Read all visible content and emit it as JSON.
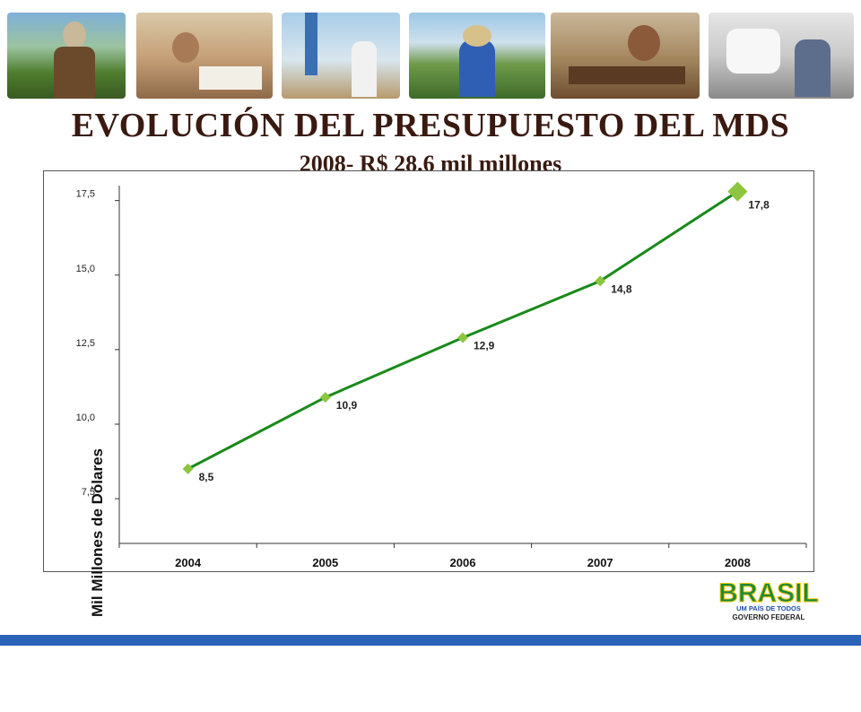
{
  "title": "EVOLUCIÓN DEL PRESUPUESTO DEL MDS",
  "subtitle": "2008- R$ 28,6 mil millones",
  "logo": {
    "word": "BRASIL",
    "tagline": "UM PAÍS DE TODOS",
    "subtext": "GOVERNO FEDERAL"
  },
  "chart_data": {
    "type": "line",
    "title": "",
    "xlabel": "",
    "ylabel": "Mil Millones de Dólares",
    "categories": [
      "2004",
      "2005",
      "2006",
      "2007",
      "2008"
    ],
    "series": [
      {
        "values": [
          8.5,
          10.9,
          12.9,
          14.8,
          17.8
        ],
        "labels": [
          "8,5",
          "10,9",
          "12,9",
          "14,8",
          "17,8"
        ],
        "color": "#1a8a1a",
        "marker_color": "#8cc63f"
      }
    ],
    "y_ticks": [
      7.5,
      10.0,
      12.5,
      15.0,
      17.5
    ],
    "y_tick_labels": [
      "7,5",
      "10,0",
      "12,5",
      "15,0",
      "17,5"
    ],
    "ylim": [
      6.0,
      18.0
    ],
    "grid": false,
    "legend": "none"
  }
}
